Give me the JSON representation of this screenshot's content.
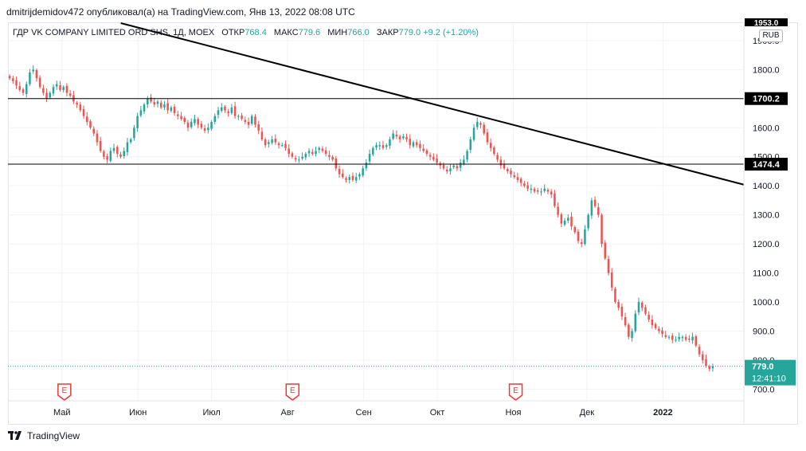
{
  "header": {
    "published_line": "dmitrijdemidov472 опубликовал(а) на TradingView.com, Янв 13, 2022 08:08 UTC"
  },
  "legend": {
    "symbol": "ГДР VK COMPANY LIMITED ORD SHS, 1Д, MOEX",
    "open_label": "ОТКР",
    "open_value": "768.4",
    "high_label": "МАКС",
    "high_value": "779.6",
    "low_label": "МИН",
    "low_value": "766.0",
    "close_label": "ЗАКР",
    "close_value": "779.0",
    "change": "+9.2 (+1.20%)"
  },
  "currency": "RUB",
  "footer": {
    "brand": "TradingView"
  },
  "colors": {
    "up": "#26a69a",
    "down": "#ef5350",
    "line": "#000000",
    "grid": "#f0f3fa",
    "axis_text": "#131722",
    "earnings": "#e53935"
  },
  "chart_data": {
    "type": "candlestick",
    "title": "ГДР VK COMPANY LIMITED ORD SHS, 1Д, MOEX",
    "ylim": [
      660,
      1960
    ],
    "y_ticks": [
      "700.0",
      "800.0",
      "900.0",
      "1000.0",
      "1100.0",
      "1200.0",
      "1300.0",
      "1400.0",
      "1500.0",
      "1600.0",
      "1700.0",
      "1800.0",
      "1900.0"
    ],
    "x_ticks": [
      {
        "label": "Май",
        "day": 22
      },
      {
        "label": "Июн",
        "day": 53
      },
      {
        "label": "Июл",
        "day": 83
      },
      {
        "label": "Авг",
        "day": 114
      },
      {
        "label": "Сен",
        "day": 145
      },
      {
        "label": "Окт",
        "day": 175
      },
      {
        "label": "Ноя",
        "day": 206
      },
      {
        "label": "Дек",
        "day": 236
      },
      {
        "label": "2022",
        "day": 267
      }
    ],
    "xlim": [
      0,
      300
    ],
    "horizontal_levels": [
      {
        "value": 1700.2,
        "label": "1700.2"
      },
      {
        "value": 1474.4,
        "label": "1474.4"
      }
    ],
    "trendline": {
      "start": {
        "day": 46,
        "price": 1960
      },
      "end": {
        "day": 300,
        "price": 1404
      }
    },
    "top_cut_label": "1953.0",
    "last_price": {
      "value": 779.0,
      "label": "779.0",
      "countdown": "12:41:10"
    },
    "earnings_markers": [
      {
        "day": 23,
        "label": "E"
      },
      {
        "day": 116,
        "label": "E"
      },
      {
        "day": 207,
        "label": "E"
      }
    ],
    "closes": [
      1770,
      1760,
      1745,
      1730,
      1720,
      1750,
      1790,
      1800,
      1770,
      1740,
      1720,
      1700,
      1720,
      1740,
      1750,
      1730,
      1740,
      1720,
      1710,
      1690,
      1680,
      1660,
      1640,
      1620,
      1600,
      1580,
      1550,
      1520,
      1500,
      1490,
      1520,
      1530,
      1510,
      1500,
      1520,
      1550,
      1560,
      1600,
      1640,
      1660,
      1680,
      1700,
      1690,
      1680,
      1690,
      1670,
      1680,
      1660,
      1670,
      1650,
      1640,
      1630,
      1620,
      1600,
      1620,
      1630,
      1610,
      1600,
      1590,
      1600,
      1620,
      1640,
      1660,
      1670,
      1660,
      1650,
      1670,
      1640,
      1640,
      1630,
      1620,
      1610,
      1640,
      1610,
      1590,
      1560,
      1540,
      1550,
      1560,
      1550,
      1540,
      1540,
      1530,
      1510,
      1500,
      1490,
      1490,
      1500,
      1510,
      1520,
      1510,
      1520,
      1530,
      1520,
      1510,
      1500,
      1490,
      1460,
      1440,
      1430,
      1420,
      1430,
      1420,
      1430,
      1440,
      1460,
      1480,
      1510,
      1530,
      1540,
      1540,
      1530,
      1540,
      1560,
      1580,
      1570,
      1560,
      1570,
      1560,
      1540,
      1550,
      1540,
      1530,
      1520,
      1510,
      1500,
      1490,
      1480,
      1470,
      1460,
      1450,
      1460,
      1470,
      1460,
      1480,
      1490,
      1520,
      1560,
      1600,
      1620,
      1610,
      1580,
      1550,
      1530,
      1510,
      1490,
      1470,
      1460,
      1450,
      1440,
      1430,
      1420,
      1410,
      1400,
      1390,
      1390,
      1380,
      1380,
      1380,
      1390,
      1380,
      1370,
      1330,
      1300,
      1270,
      1280,
      1290,
      1260,
      1240,
      1210,
      1200,
      1250,
      1300,
      1350,
      1330,
      1300,
      1200,
      1150,
      1100,
      1050,
      1000,
      980,
      950,
      920,
      880,
      900,
      960,
      1000,
      980,
      960,
      940,
      920,
      910,
      900,
      890,
      880,
      880,
      870,
      870,
      880,
      880,
      870,
      870,
      880,
      850,
      820,
      800,
      780,
      770,
      779
    ]
  }
}
